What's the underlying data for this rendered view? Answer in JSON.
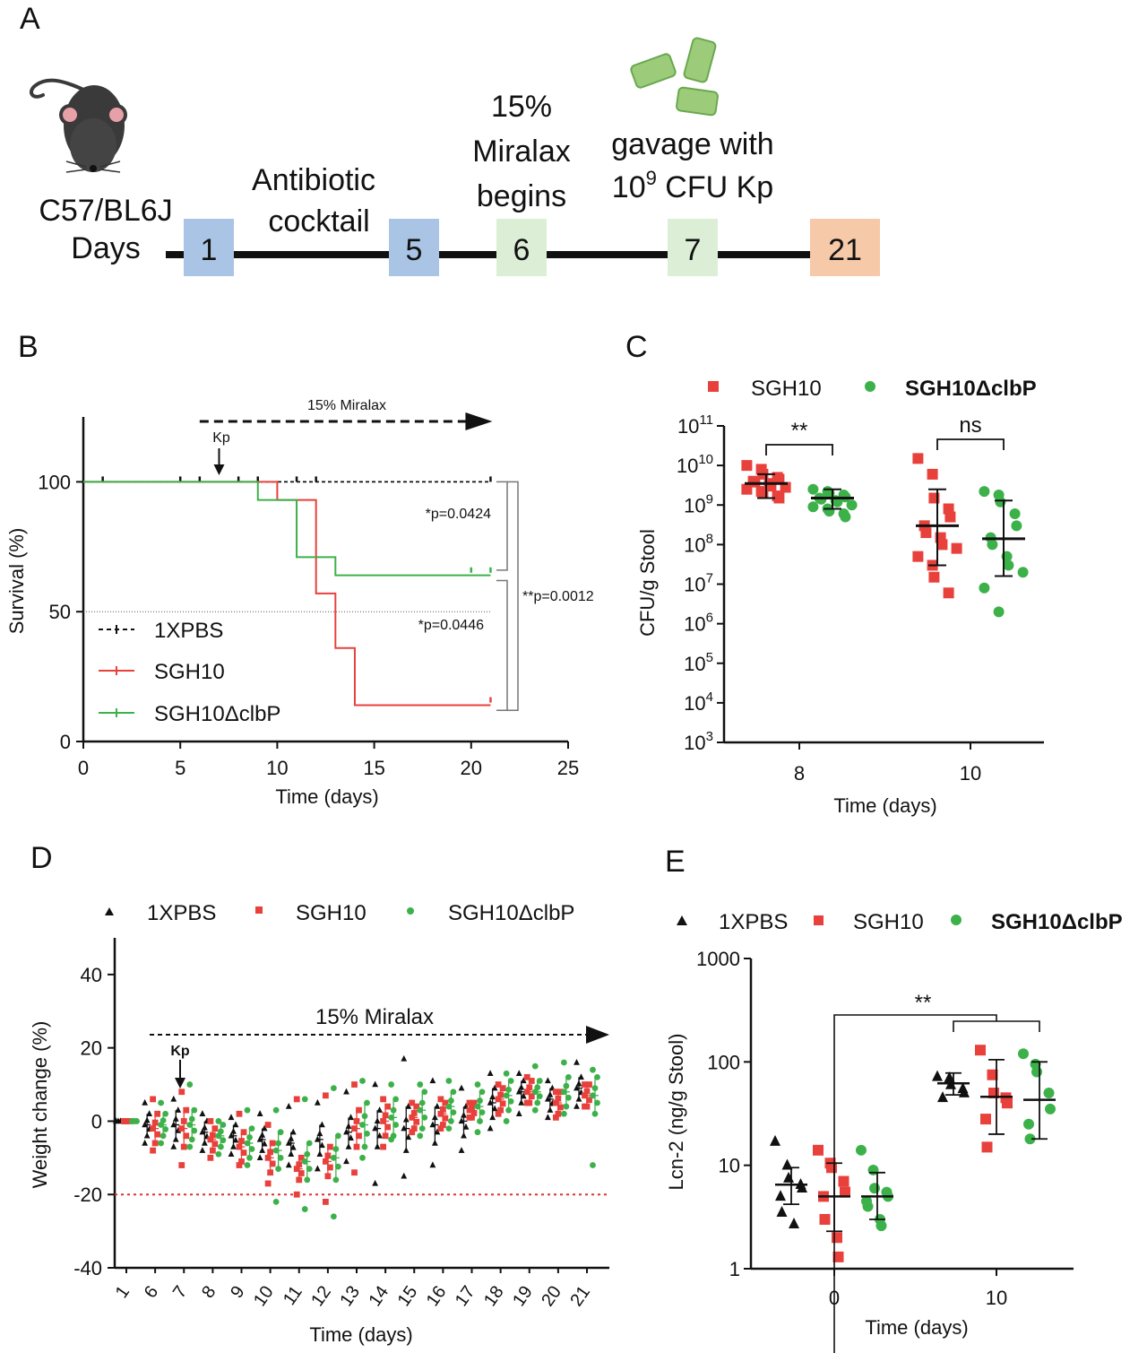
{
  "panel_labels": [
    "A",
    "B",
    "C",
    "D",
    "E"
  ],
  "timeline": {
    "strain": "C57/BL6J",
    "days_label": "Days",
    "boxes": [
      {
        "day": "1",
        "color": "#a9c4e4"
      },
      {
        "day": "5",
        "color": "#a9c4e4"
      },
      {
        "day": "6",
        "color": "#dcefd6"
      },
      {
        "day": "7",
        "color": "#dcefd6"
      },
      {
        "day": "21",
        "color": "#f6c9a9"
      }
    ],
    "events": {
      "antibiotic_line1": "Antibiotic",
      "antibiotic_line2": "cocktail",
      "miralax_line1": "15%",
      "miralax_line2": "Miralax",
      "miralax_line3": "begins",
      "gavage_line1": "gavage with",
      "gavage_base": "10",
      "gavage_exp": "9",
      "gavage_rest": " CFU Kp"
    },
    "colors": {
      "bacteria": "#9ccc7a",
      "bacteria_edge": "#6aa84f",
      "mouse": "#3a3a3a",
      "ear": "#e8a0a8"
    }
  },
  "colors": {
    "pbs": "#111111",
    "sgh10": "#e8413c",
    "clbp": "#3cb14a",
    "threshold": "#e03030"
  },
  "chart_data": [
    {
      "panel": "B",
      "type": "line",
      "xlabel": "Time (days)",
      "ylabel": "Survival (%)",
      "xlim": [
        0,
        25
      ],
      "ylim": [
        0,
        125
      ],
      "xticks": [
        "0",
        "5",
        "10",
        "15",
        "20",
        "25"
      ],
      "yticks": [
        "0",
        "50",
        "100"
      ],
      "miralax_label": "15% Miralax",
      "kp_label": "Kp",
      "kp_day": 7,
      "miralax_range": [
        6,
        21
      ],
      "legend_position": "lower-left",
      "series": [
        {
          "name": "1XPBS",
          "style": "dashed",
          "x": [
            0,
            21
          ],
          "y": [
            100,
            100
          ],
          "censor_x": [
            1,
            5,
            6,
            8,
            9,
            11,
            12,
            21
          ],
          "censor_y": [
            100,
            100,
            100,
            100,
            100,
            100,
            100,
            100
          ]
        },
        {
          "name": "SGH10",
          "style": "solid",
          "x": [
            0,
            10,
            10,
            12,
            12,
            13,
            13,
            14,
            14,
            21
          ],
          "y": [
            100,
            100,
            93,
            93,
            57,
            57,
            36,
            36,
            14,
            14
          ],
          "censor_x": [
            21
          ],
          "censor_y": [
            15
          ]
        },
        {
          "name": "SGH10ΔclbP",
          "style": "solid",
          "x": [
            0,
            9,
            9,
            11,
            11,
            13,
            13,
            21
          ],
          "y": [
            100,
            100,
            93,
            93,
            71,
            71,
            64,
            64
          ],
          "censor_x": [
            20,
            21
          ],
          "censor_y": [
            65,
            65
          ]
        }
      ],
      "annotations": [
        "*p=0.0424",
        "*p=0.0446",
        "**p=0.0012"
      ]
    },
    {
      "panel": "C",
      "type": "scatter",
      "xlabel": "Time (days)",
      "ylabel": "CFU/g Stool",
      "yscale": "log",
      "ylim_exp": [
        3,
        11
      ],
      "ytick_base": "10",
      "ytick_exps": [
        "3",
        "4",
        "5",
        "6",
        "7",
        "8",
        "9",
        "10",
        "11"
      ],
      "categories": [
        "8",
        "10"
      ],
      "legend_position": "top",
      "significance": [
        "**",
        "ns"
      ],
      "series": [
        {
          "name": "SGH10",
          "marker": "square",
          "day8": [
            10000000000.0,
            8000000000.0,
            6000000000.0,
            5000000000.0,
            4500000000.0,
            4000000000.0,
            3800000000.0,
            3500000000.0,
            3000000000.0,
            2800000000.0,
            2500000000.0,
            2200000000.0,
            2000000000.0,
            1700000000.0,
            1500000000.0
          ],
          "day10": [
            15000000000.0,
            6000000000.0,
            1500000000.0,
            800000000.0,
            500000000.0,
            300000000.0,
            200000000.0,
            150000000.0,
            100000000.0,
            80000000.0,
            50000000.0,
            30000000.0,
            15000000.0,
            6000000.0
          ],
          "mean": [
            3500000000.0,
            300000000.0
          ],
          "err_low": [
            1500000000.0,
            30000000.0
          ],
          "err_high": [
            6000000000.0,
            2500000000.0
          ]
        },
        {
          "name": "SGH10ΔclbP",
          "marker": "circle",
          "day8": [
            2500000000.0,
            2200000000.0,
            2000000000.0,
            1800000000.0,
            1600000000.0,
            1500000000.0,
            1400000000.0,
            1300000000.0,
            1200000000.0,
            1000000000.0,
            900000000.0,
            800000000.0,
            700000000.0,
            600000000.0,
            500000000.0
          ],
          "day10": [
            2200000000.0,
            1800000000.0,
            1200000000.0,
            600000000.0,
            300000000.0,
            150000000.0,
            100000000.0,
            50000000.0,
            30000000.0,
            20000000.0,
            8000000.0,
            2000000.0
          ],
          "mean": [
            1500000000.0,
            140000000.0
          ],
          "err_low": [
            800000000.0,
            16000000.0
          ],
          "err_high": [
            2500000000.0,
            1300000000.0
          ]
        }
      ]
    },
    {
      "panel": "D",
      "type": "scatter",
      "xlabel": "Time (days)",
      "ylabel": "Weight change (%)",
      "ylim": [
        -40,
        50
      ],
      "yticks": [
        "-40",
        "-20",
        "0",
        "20",
        "40"
      ],
      "categories": [
        "1",
        "6",
        "7",
        "8",
        "9",
        "10",
        "11",
        "12",
        "13",
        "14",
        "15",
        "16",
        "17",
        "18",
        "19",
        "20",
        "21"
      ],
      "threshold": -20,
      "miralax_label": "15% Miralax",
      "kp_label": "Kp",
      "legend_position": "top",
      "series": [
        {
          "name": "1XPBS",
          "marker": "triangle",
          "mean": [
            0,
            -1,
            -1,
            -3,
            -4,
            -5,
            -6,
            -5,
            -3,
            -2,
            -2,
            -1,
            0,
            5,
            8,
            6,
            9
          ],
          "sd": [
            0.5,
            3,
            4,
            3,
            3,
            3,
            3,
            4,
            4,
            5,
            6,
            5,
            4,
            4,
            3,
            3,
            3
          ],
          "min": [
            0,
            -6,
            -7,
            -8,
            -9,
            -10,
            -12,
            -13,
            -11,
            -17,
            -15,
            -12,
            -8,
            -2,
            2,
            1,
            4
          ],
          "max": [
            0,
            5,
            6,
            2,
            1,
            2,
            4,
            5,
            8,
            10,
            17,
            11,
            9,
            13,
            13,
            11,
            16
          ]
        },
        {
          "name": "SGH10",
          "marker": "square",
          "mean": [
            0,
            -2,
            -2,
            -5,
            -7,
            -10,
            -13,
            -11,
            -2,
            0,
            1,
            2,
            3,
            6,
            8,
            5,
            7
          ],
          "sd": [
            0.5,
            4,
            5,
            3,
            4,
            4,
            3,
            4,
            5,
            4,
            3,
            3,
            2,
            3,
            3,
            3,
            3
          ],
          "min": [
            0,
            -8,
            -12,
            -10,
            -12,
            -17,
            -20,
            -22,
            -14,
            -7,
            -3,
            -2,
            1,
            2,
            5,
            1,
            4
          ],
          "max": [
            0,
            6,
            8,
            0,
            2,
            -1,
            6,
            7,
            10,
            6,
            5,
            6,
            5,
            10,
            12,
            8,
            10
          ]
        },
        {
          "name": "SGH10ΔclbP",
          "marker": "circle",
          "mean": [
            0,
            -1,
            -1,
            -4,
            -6,
            -8,
            -11,
            -10,
            -1,
            1,
            3,
            4,
            4,
            7,
            8,
            8,
            7
          ],
          "sd": [
            0.5,
            3,
            4,
            3,
            4,
            5,
            5,
            6,
            6,
            5,
            5,
            4,
            4,
            4,
            3,
            4,
            5
          ],
          "min": [
            0,
            -6,
            -7,
            -9,
            -12,
            -22,
            -24,
            -26,
            -10,
            -5,
            -4,
            -2,
            -3,
            0,
            3,
            2,
            -12
          ],
          "max": [
            0,
            5,
            10,
            0,
            3,
            3,
            6,
            9,
            11,
            10,
            10,
            11,
            10,
            13,
            15,
            16,
            14
          ]
        }
      ]
    },
    {
      "panel": "E",
      "type": "scatter",
      "xlabel": "Time (days)",
      "ylabel": "Lcn-2 (ng/g Stool)",
      "yscale": "log",
      "ylim": [
        1,
        1000
      ],
      "yticks": [
        "1",
        "10",
        "100",
        "1000"
      ],
      "categories": [
        "0",
        "10"
      ],
      "legend_position": "top",
      "significance": [
        "**"
      ],
      "series": [
        {
          "name": "1XPBS",
          "marker": "triangle",
          "day0": [
            17,
            10,
            7.5,
            6.5,
            6.0,
            5.0,
            3.5,
            2.7
          ],
          "day10": [
            72,
            70,
            60,
            55,
            50,
            45
          ],
          "mean": [
            6.5,
            62
          ],
          "err_low": [
            4.2,
            48
          ],
          "err_high": [
            9.5,
            78
          ]
        },
        {
          "name": "SGH10",
          "marker": "square",
          "day0": [
            14,
            10.5,
            9.5,
            7.0,
            5.5,
            5.0,
            3.0,
            2.0,
            1.3
          ],
          "day10": [
            130,
            75,
            50,
            45,
            40,
            28,
            15
          ],
          "mean": [
            5.0,
            46
          ],
          "err_low": [
            2.3,
            20
          ],
          "err_high": [
            10.5,
            105
          ]
        },
        {
          "name": "SGH10ΔclbP",
          "marker": "circle",
          "day0": [
            14,
            9.0,
            6.0,
            5.5,
            5.0,
            4.5,
            4.0,
            3.0,
            2.6
          ],
          "day10": [
            120,
            95,
            80,
            50,
            35,
            25,
            18
          ],
          "mean": [
            5.0,
            43
          ],
          "err_low": [
            3.0,
            18
          ],
          "err_high": [
            8.5,
            100
          ]
        }
      ]
    }
  ]
}
